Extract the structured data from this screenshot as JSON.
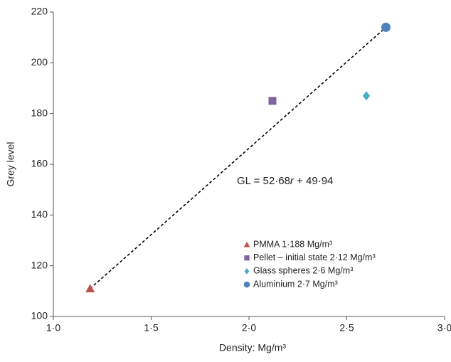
{
  "chart_data": {
    "type": "scatter",
    "xlabel": "Density: Mg/m³",
    "ylabel": "Grey level",
    "annotation": [
      "GL = 52·68",
      "r",
      " + 49·94"
    ],
    "xlim": [
      1.0,
      3.0
    ],
    "xticks": [
      {
        "value": 1.0,
        "label": "1·0"
      },
      {
        "value": 1.5,
        "label": "1·5"
      },
      {
        "value": 2.0,
        "label": "2·0"
      },
      {
        "value": 2.5,
        "label": "2·5"
      },
      {
        "value": 3.0,
        "label": "3·0"
      }
    ],
    "ylim": [
      100,
      220
    ],
    "yticks": [
      100,
      120,
      140,
      160,
      180,
      200,
      220
    ],
    "legend": "bottom-right",
    "series": [
      {
        "name": "PMMA 1·188 Mg/m³",
        "color": "#c0504d",
        "marker": "triangle",
        "x": [
          1.188
        ],
        "y": [
          111
        ]
      },
      {
        "name": "Pellet – initial state 2·12 Mg/m³",
        "color": "#8064a2",
        "marker": "square",
        "x": [
          2.12
        ],
        "y": [
          185
        ]
      },
      {
        "name": "Glass spheres 2·6 Mg/m³",
        "color": "#4bacc6",
        "marker": "diamond",
        "x": [
          2.6
        ],
        "y": [
          187
        ]
      },
      {
        "name": "Aluminium 2·7 Mg/m³",
        "color": "#4f81bd",
        "marker": "circle",
        "x": [
          2.7
        ],
        "y": [
          214
        ]
      }
    ],
    "trendline": {
      "x": [
        1.188,
        2.7
      ],
      "y": [
        111,
        214
      ],
      "color": "#000000"
    }
  }
}
